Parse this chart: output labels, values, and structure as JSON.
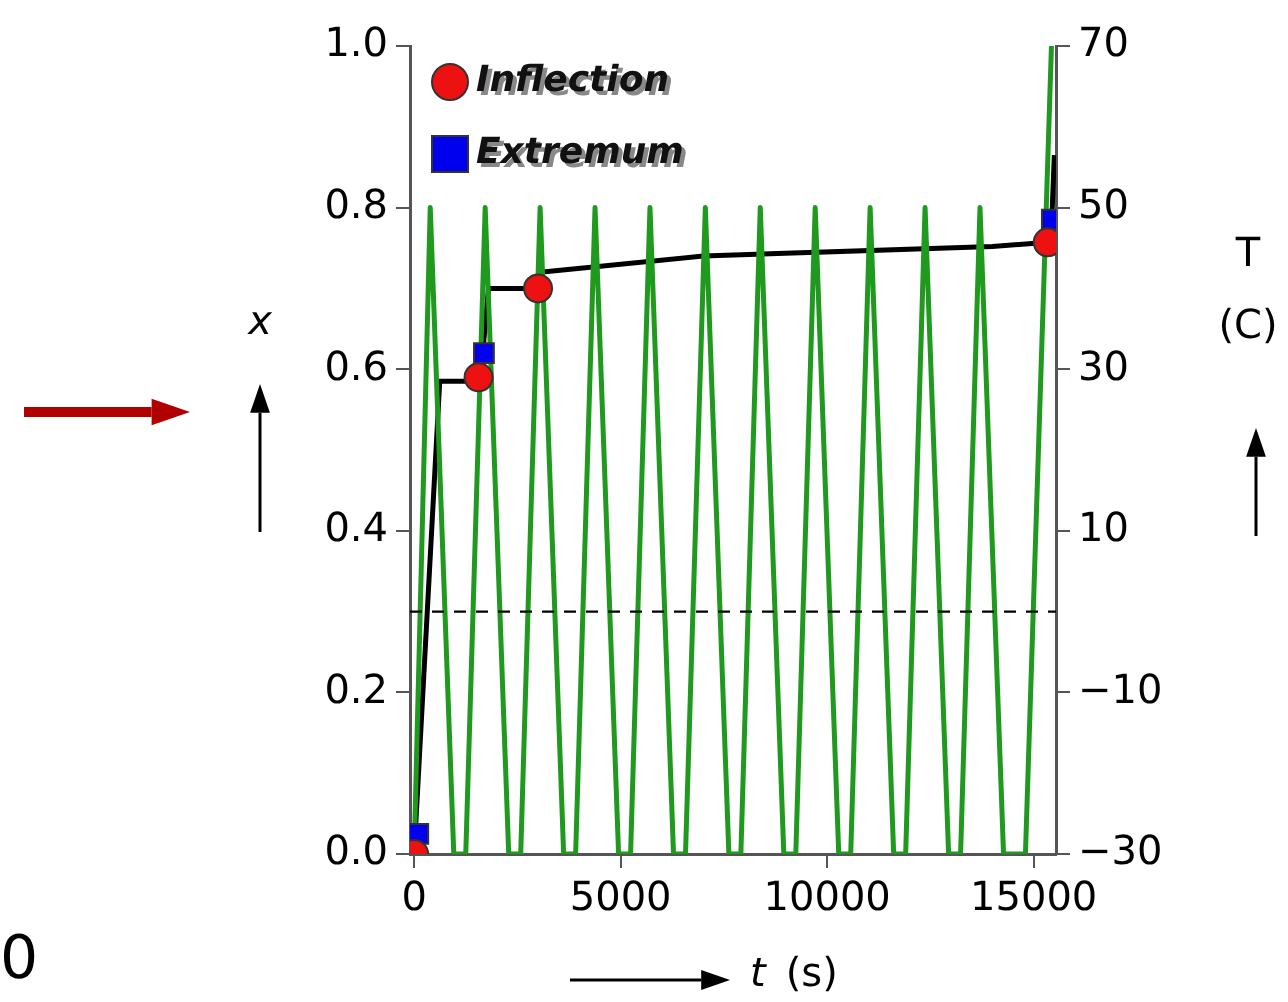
{
  "chart_data": {
    "type": "line",
    "xlabel": "t (s)",
    "ylabel": "x",
    "y2label": "T (C)",
    "annotations": [
      "0"
    ],
    "xlim": [
      -100,
      15540
    ],
    "xticks": [
      0,
      5000,
      10000,
      15000
    ],
    "ylim": [
      0,
      1
    ],
    "yticks": [
      {
        "value": 0,
        "label": "0.0"
      },
      {
        "value": 0.2,
        "label": "0.2"
      },
      {
        "value": 0.4,
        "label": "0.4"
      },
      {
        "value": 0.6,
        "label": "0.6"
      },
      {
        "value": 0.8,
        "label": "0.8"
      },
      {
        "value": 1,
        "label": "1.0"
      }
    ],
    "y2lim": [
      -30,
      70
    ],
    "y2ticks": [
      {
        "value": -30,
        "label": "−30"
      },
      {
        "value": -10,
        "label": "−10"
      },
      10,
      30,
      50,
      70
    ],
    "grid": false,
    "legend": "top left",
    "ref_lines": [
      {
        "axis": "y",
        "value": 0.3,
        "color": "#000000",
        "line_style": "dashed"
      }
    ],
    "series": [
      {
        "axis": "y2",
        "color": "#1f9a1f",
        "marker": "none",
        "x": [
          0,
          390,
          960,
          1250,
          1720,
          2290,
          2580,
          3050,
          3620,
          3910,
          4380,
          4950,
          5240,
          5710,
          6280,
          6570,
          7050,
          7620,
          7910,
          8380,
          8950,
          9240,
          9710,
          10280,
          10570,
          11040,
          11610,
          11900,
          12370,
          12940,
          13230,
          13700,
          14270,
          14800,
          15430
        ],
        "values": [
          -30,
          50,
          -30,
          -30,
          50,
          -30,
          -30,
          50,
          -30,
          -30,
          50,
          -30,
          -30,
          50,
          -30,
          -30,
          50,
          -30,
          -30,
          50,
          -30,
          -30,
          50,
          -30,
          -30,
          50,
          -30,
          -30,
          50,
          -30,
          -30,
          50,
          -30,
          -30,
          70
        ]
      },
      {
        "axis": "y",
        "color": "#000000",
        "marker": "none",
        "x": [
          0,
          620,
          1600,
          1800,
          3000,
          3050,
          7000,
          14000,
          15350,
          15450,
          15500
        ],
        "values": [
          0,
          0.585,
          0.585,
          0.7,
          0.7,
          0.72,
          0.74,
          0.752,
          0.757,
          0.8,
          0.865
        ]
      },
      {
        "type": "scatter",
        "axis": "y",
        "name": "Inflection",
        "color": "#ee1111",
        "marker": "circle",
        "x": [
          0,
          1560,
          3000,
          15340
        ],
        "values": [
          0,
          0.59,
          0.7,
          0.757
        ]
      },
      {
        "type": "scatter",
        "axis": "y",
        "name": "Extremum",
        "color": "#0000ee",
        "marker": "square",
        "x": [
          100,
          1690,
          15440
        ],
        "values": [
          0.025,
          0.62,
          0.785
        ]
      }
    ]
  }
}
